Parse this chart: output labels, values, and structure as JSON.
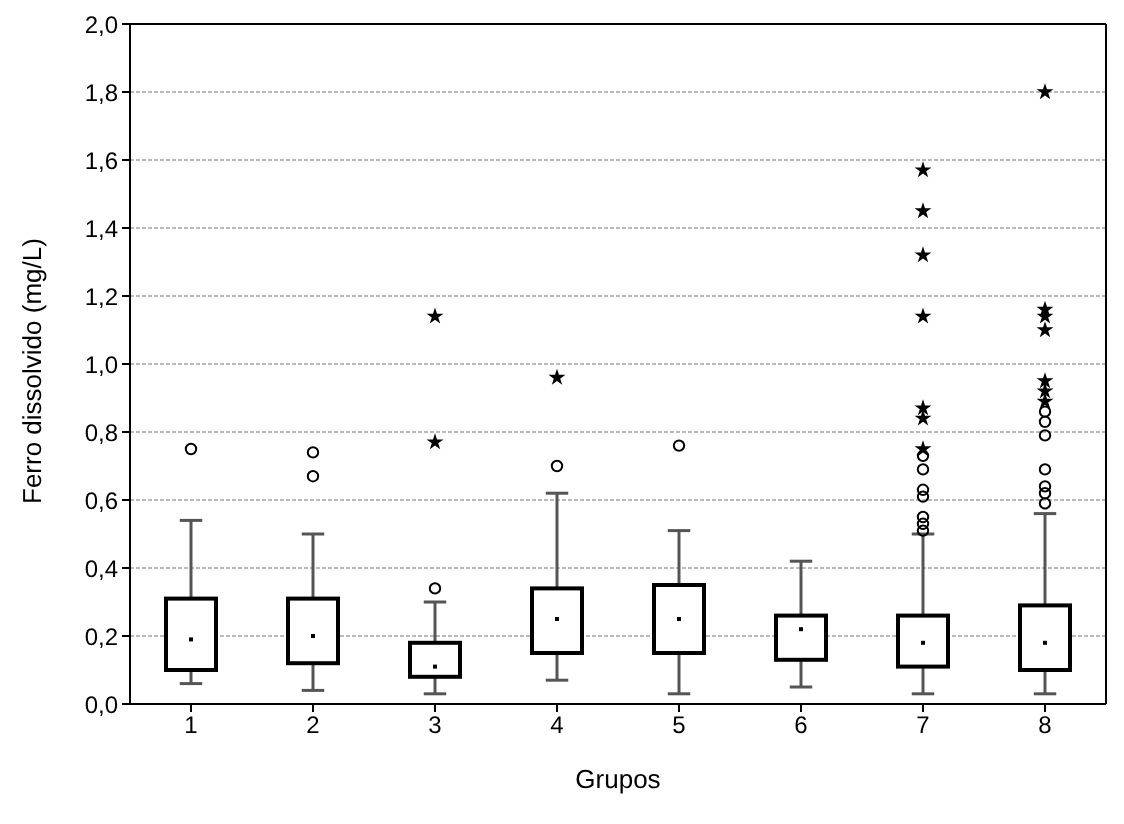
{
  "chart_data": {
    "type": "box",
    "xlabel": "Grupos",
    "ylabel": "Ferro dissolvido (mg/L)",
    "categories": [
      "1",
      "2",
      "3",
      "4",
      "5",
      "6",
      "7",
      "8"
    ],
    "boxes": [
      {
        "low": 0.06,
        "q1": 0.1,
        "median": 0.19,
        "q3": 0.31,
        "high": 0.54,
        "outliers": [
          0.75
        ]
      },
      {
        "low": 0.04,
        "q1": 0.12,
        "median": 0.2,
        "q3": 0.31,
        "high": 0.5,
        "outliers": [
          0.74,
          0.67
        ]
      },
      {
        "low": 0.03,
        "q1": 0.08,
        "median": 0.11,
        "q3": 0.18,
        "high": 0.3,
        "outliers": [
          0.34
        ]
      },
      {
        "low": 0.07,
        "q1": 0.15,
        "median": 0.25,
        "q3": 0.34,
        "high": 0.62,
        "outliers": [
          0.7
        ]
      },
      {
        "low": 0.03,
        "q1": 0.15,
        "median": 0.25,
        "q3": 0.35,
        "high": 0.51,
        "outliers": [
          0.76
        ]
      },
      {
        "low": 0.05,
        "q1": 0.13,
        "median": 0.22,
        "q3": 0.26,
        "high": 0.42
      },
      {
        "low": 0.03,
        "q1": 0.11,
        "median": 0.18,
        "q3": 0.26,
        "high": 0.5,
        "outliers": [
          0.73,
          0.69,
          0.63,
          0.61,
          0.55,
          0.53,
          0.51
        ]
      },
      {
        "low": 0.03,
        "q1": 0.1,
        "median": 0.18,
        "q3": 0.29,
        "high": 0.56,
        "outliers": [
          0.86,
          0.83,
          0.79,
          0.69,
          0.64,
          0.62,
          0.59
        ]
      }
    ],
    "series": [
      {
        "type": "scatter",
        "marker": "star",
        "color": "#000000",
        "x": [
          "3",
          "3",
          "4",
          "7",
          "7",
          "7",
          "7",
          "7",
          "7",
          "7",
          "8",
          "8",
          "8",
          "8",
          "8",
          "8",
          "8"
        ],
        "values": [
          1.14,
          0.77,
          0.96,
          1.57,
          1.45,
          1.32,
          1.14,
          0.87,
          0.84,
          0.75,
          1.8,
          1.16,
          1.14,
          1.1,
          0.95,
          0.92,
          0.89
        ]
      }
    ],
    "ylim": [
      0,
      2
    ],
    "yticks": [
      {
        "value": 0,
        "label": "0,0"
      },
      {
        "value": 0.2,
        "label": "0,2"
      },
      {
        "value": 0.4,
        "label": "0,4"
      },
      {
        "value": 0.6,
        "label": "0,6"
      },
      {
        "value": 0.8,
        "label": "0,8"
      },
      {
        "value": 1,
        "label": "1,0"
      },
      {
        "value": 1.2,
        "label": "1,2"
      },
      {
        "value": 1.4,
        "label": "1,4"
      },
      {
        "value": 1.6,
        "label": "1,6"
      },
      {
        "value": 1.8,
        "label": "1,8"
      },
      {
        "value": 2,
        "label": "2,0"
      }
    ],
    "grid": "y",
    "marker": "circle"
  }
}
